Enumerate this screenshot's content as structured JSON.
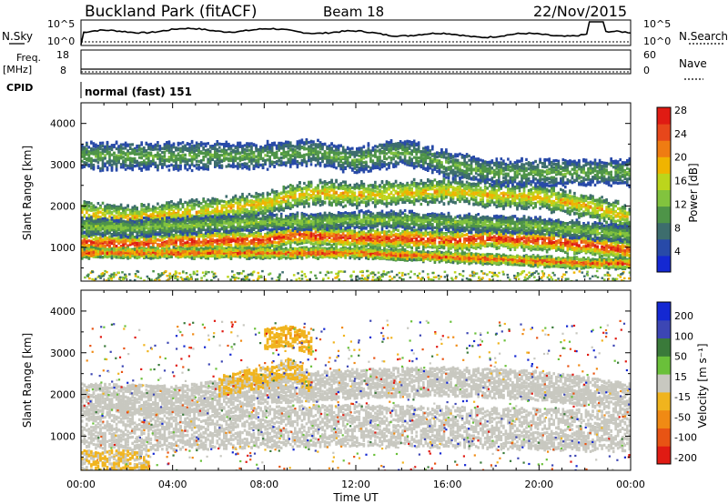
{
  "header": {
    "station": "Buckland Park (fitACF)",
    "beam": "Beam 18",
    "date": "22/Nov/2015"
  },
  "noise_panel": {
    "left_label": "N.Sky",
    "right_label": "N.Search",
    "ticks": [
      "10^5",
      "10^0"
    ]
  },
  "freq_panel": {
    "left_label_1": "Freq.",
    "left_label_2": "[MHz]",
    "right_label": "Nave",
    "left_ticks": [
      "18",
      "8"
    ],
    "right_ticks": [
      "60",
      "0"
    ]
  },
  "cpid_panel": {
    "label": "CPID",
    "value": "normal (fast) 151"
  },
  "colors": {
    "power_scale": [
      "#1428d2",
      "#284aa8",
      "#3d6d6d",
      "#4e9448",
      "#82c33e",
      "#bcd51c",
      "#f0b400",
      "#ef7c12",
      "#e7471b",
      "#e01b13"
    ],
    "velocity_scale": [
      "#1428d2",
      "#3c46b4",
      "#3a7a3a",
      "#6ac03a",
      "#c8c8c0",
      "#f0b41e",
      "#f08a14",
      "#e85414",
      "#e01b13"
    ],
    "ground_scatter": "#c8c8c0"
  },
  "chart_data": [
    {
      "type": "heatmap",
      "title": "",
      "xlabel": "Time UT",
      "ylabel": "Slant Range [km]",
      "x_ticks": [
        "00:00",
        "04:00",
        "08:00",
        "12:00",
        "16:00",
        "20:00",
        "00:00"
      ],
      "y_ticks": [
        "1000",
        "2000",
        "3000",
        "4000"
      ],
      "xlim": [
        0,
        24
      ],
      "ylim": [
        180,
        4500
      ],
      "colorbar": {
        "label": "Power [dB]",
        "ticks": [
          "4",
          "8",
          "12",
          "16",
          "20",
          "24",
          "28"
        ],
        "range": [
          0,
          30
        ]
      },
      "bands": [
        {
          "name": "",
          "x": [
            0,
            2,
            4,
            6,
            8,
            9.5,
            10.5,
            12,
            14,
            16,
            18,
            20,
            22,
            24
          ],
          "y": [
            1100,
            1050,
            1100,
            1150,
            1150,
            1300,
            1250,
            1200,
            1200,
            1150,
            1200,
            1150,
            1050,
            900
          ],
          "width": 220,
          "peak_db": 28
        },
        {
          "name": "",
          "x": [
            0,
            2,
            4,
            6,
            8,
            9,
            10,
            11,
            12,
            14,
            16,
            18,
            20,
            22,
            24
          ],
          "y": [
            1800,
            1700,
            1800,
            1900,
            2050,
            2200,
            2300,
            2300,
            2250,
            2300,
            2350,
            2250,
            2200,
            2000,
            1700
          ],
          "width": 280,
          "peak_db": 20
        },
        {
          "name": "",
          "x": [
            0,
            2,
            4,
            6,
            8,
            10,
            12,
            14,
            16,
            18,
            20,
            22,
            24
          ],
          "y": [
            1500,
            1450,
            1500,
            1550,
            1600,
            1600,
            1650,
            1650,
            1600,
            1550,
            1500,
            1400,
            1300
          ],
          "width": 200,
          "peak_db": 14
        },
        {
          "name": "",
          "x": [
            12,
            14,
            16,
            18,
            20,
            22
          ],
          "y": [
            850,
            800,
            750,
            700,
            650,
            600
          ],
          "width": 120,
          "peak_db": 26
        },
        {
          "name": "",
          "x": [
            8,
            10,
            12,
            14,
            16,
            18
          ],
          "y": [
            3200,
            3300,
            3100,
            3300,
            3000,
            2800
          ],
          "width": 300,
          "peak_db": 12
        }
      ]
    },
    {
      "type": "heatmap",
      "title": "",
      "xlabel": "Time UT",
      "ylabel": "Slant Range [km]",
      "x_ticks": [
        "00:00",
        "04:00",
        "08:00",
        "12:00",
        "16:00",
        "20:00",
        "00:00"
      ],
      "y_ticks": [
        "1000",
        "2000",
        "3000",
        "4000"
      ],
      "xlim": [
        0,
        24
      ],
      "ylim": [
        180,
        4500
      ],
      "colorbar": {
        "label": "Velocity [m s⁻¹]",
        "ticks": [
          "200",
          "100",
          "50",
          "15",
          "-15",
          "-50",
          "-100",
          "-200"
        ],
        "range": [
          -250,
          250
        ]
      },
      "ground_scatter_bands": [
        {
          "x": [
            0,
            4,
            8,
            12,
            16,
            20,
            24
          ],
          "y": [
            1200,
            1150,
            1200,
            1250,
            1200,
            1150,
            1100
          ],
          "width": 500
        },
        {
          "x": [
            0,
            4,
            8,
            12,
            16,
            20,
            24
          ],
          "y": [
            1900,
            1850,
            2100,
            2250,
            2300,
            2200,
            1900
          ],
          "width": 350
        }
      ],
      "ionospheric_patches": [
        {
          "x": [
            6,
            7,
            8,
            9,
            10
          ],
          "y": [
            2200,
            2300,
            2400,
            2600,
            2300
          ],
          "velocity": -40
        },
        {
          "x": [
            8,
            9,
            10
          ],
          "y": [
            3300,
            3400,
            3200
          ],
          "velocity": -60
        },
        {
          "x": [
            0,
            1,
            2,
            3
          ],
          "y": [
            400,
            380,
            420,
            400
          ],
          "velocity": -30
        }
      ]
    }
  ]
}
